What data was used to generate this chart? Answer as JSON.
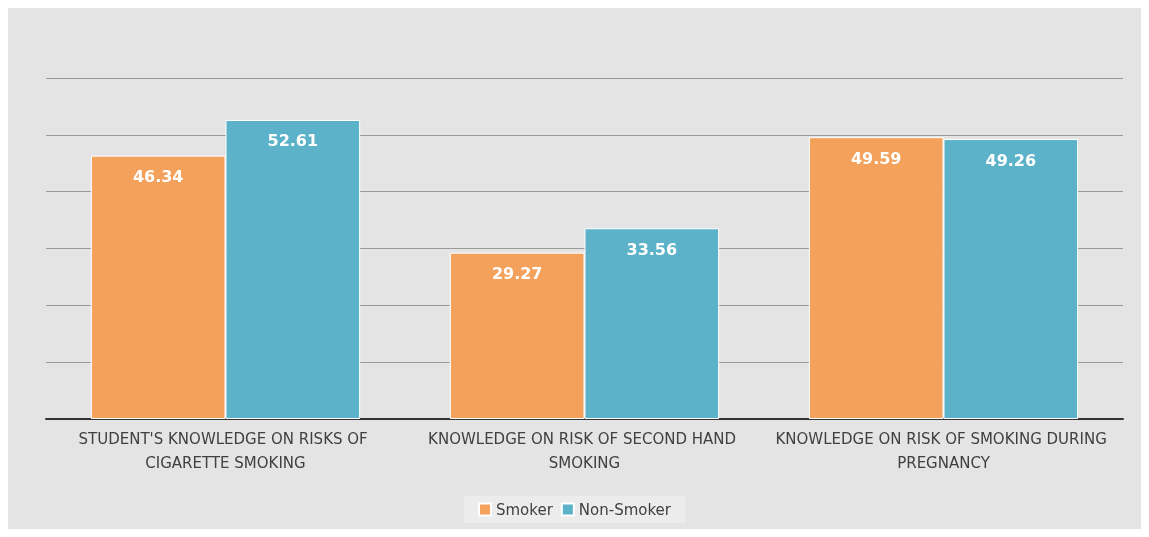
{
  "chart_data": {
    "type": "bar",
    "categories": [
      "STUDENT'S KNOWLEDGE ON RISKS OF CIGARETTE SMOKING",
      "KNOWLEDGE ON RISK OF SECOND HAND SMOKING",
      "KNOWLEDGE ON RISK OF SMOKING DURING PREGNANCY"
    ],
    "series": [
      {
        "name": "Smoker",
        "color": "#f4a15c",
        "values": [
          46.34,
          29.27,
          49.59
        ]
      },
      {
        "name": "Non-Smoker",
        "color": "#5cb3c9",
        "values": [
          52.61,
          33.56,
          49.26
        ]
      }
    ],
    "ylim": [
      0,
      60
    ],
    "yticks": [
      {
        "value": 0,
        "label": null
      },
      {
        "value": 10,
        "label": null
      },
      {
        "value": 20,
        "label": null
      },
      {
        "value": 30,
        "label": null
      },
      {
        "value": 40,
        "label": null
      },
      {
        "value": 50,
        "label": null
      },
      {
        "value": 60,
        "label": null
      }
    ],
    "tick_labels": "x",
    "grid": "y",
    "legend": "bottom",
    "data_labels": true
  }
}
